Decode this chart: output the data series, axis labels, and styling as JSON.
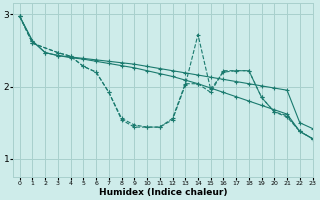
{
  "background_color": "#ceecea",
  "grid_color": "#a8d0cd",
  "line_color": "#1a7a6e",
  "xlabel": "Humidex (Indice chaleur)",
  "xlim": [
    -0.5,
    23
  ],
  "ylim": [
    0.75,
    3.15
  ],
  "yticks": [
    1,
    2,
    3
  ],
  "xticks": [
    0,
    1,
    2,
    3,
    4,
    5,
    6,
    7,
    8,
    9,
    10,
    11,
    12,
    13,
    14,
    15,
    16,
    17,
    18,
    19,
    20,
    21,
    22,
    23
  ],
  "series": [
    {
      "x": [
        0,
        1,
        2,
        3,
        4,
        5,
        6,
        7,
        8,
        9,
        10,
        11,
        12,
        13,
        14,
        15,
        16,
        17,
        18,
        19,
        20,
        21,
        22,
        23
      ],
      "y": [
        2.97,
        2.63,
        2.47,
        2.43,
        2.41,
        2.39,
        2.37,
        2.35,
        2.33,
        2.31,
        2.28,
        2.25,
        2.22,
        2.19,
        2.16,
        2.13,
        2.1,
        2.07,
        2.04,
        2.01,
        1.98,
        1.95,
        1.5,
        1.42
      ],
      "linestyle": "-"
    },
    {
      "x": [
        0,
        1,
        2,
        3,
        4,
        5,
        6,
        7,
        8,
        9,
        10,
        11,
        12,
        13,
        14,
        15,
        16,
        17,
        18,
        19,
        20,
        21,
        22,
        23
      ],
      "y": [
        2.97,
        2.63,
        2.47,
        2.43,
        2.4,
        2.38,
        2.35,
        2.32,
        2.29,
        2.26,
        2.22,
        2.18,
        2.14,
        2.09,
        2.04,
        1.98,
        1.92,
        1.86,
        1.8,
        1.74,
        1.68,
        1.62,
        1.38,
        1.28
      ],
      "linestyle": "-"
    },
    {
      "x": [
        0,
        1,
        3,
        4,
        5,
        6,
        7,
        8,
        9,
        10,
        11,
        12,
        13,
        14,
        15,
        16,
        17,
        18,
        19,
        20,
        21,
        22,
        23
      ],
      "y": [
        2.97,
        2.6,
        2.47,
        2.42,
        2.28,
        2.2,
        1.92,
        1.56,
        1.47,
        1.44,
        1.44,
        1.54,
        2.02,
        2.72,
        1.96,
        2.2,
        2.22,
        2.22,
        1.85,
        1.65,
        1.58,
        1.38,
        1.28
      ],
      "linestyle": "--"
    },
    {
      "x": [
        0,
        1,
        3,
        4,
        5,
        6,
        7,
        8,
        9,
        10,
        11,
        12,
        13,
        14,
        15,
        16,
        17,
        18,
        19,
        20,
        21,
        22,
        23
      ],
      "y": [
        2.97,
        2.6,
        2.47,
        2.42,
        2.28,
        2.2,
        1.92,
        1.54,
        1.44,
        1.44,
        1.44,
        1.56,
        2.04,
        2.04,
        1.92,
        2.22,
        2.22,
        2.22,
        1.85,
        1.65,
        1.6,
        1.38,
        1.28
      ],
      "linestyle": "--"
    }
  ]
}
